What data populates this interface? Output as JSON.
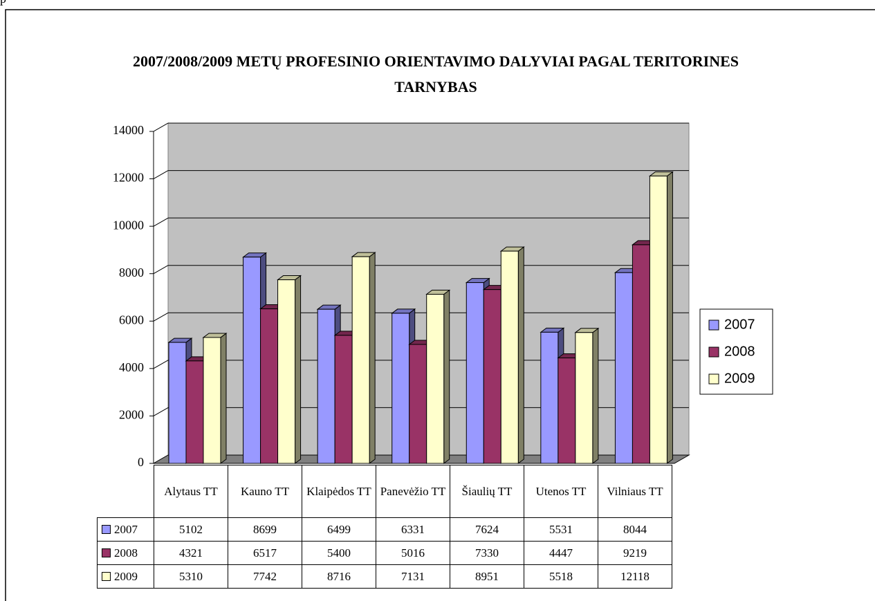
{
  "page_fragment": "p",
  "chart_data": {
    "type": "bar3d",
    "title": "2007/2008/2009 METŲ PROFESINIO ORIENTAVIMO DALYVIAI PAGAL TERITORINES TARNYBAS",
    "categories": [
      "Alytaus TT",
      "Kauno TT",
      "Klaipėdos TT",
      "Panevėžio TT",
      "Šiaulių TT",
      "Utenos TT",
      "Vilniaus TT"
    ],
    "series": [
      {
        "name": "2007",
        "color": "#9999ff",
        "values": [
          5102,
          8699,
          6499,
          6331,
          7624,
          5531,
          8044
        ]
      },
      {
        "name": "2008",
        "color": "#993366",
        "values": [
          4321,
          6517,
          5400,
          5016,
          7330,
          4447,
          9219
        ]
      },
      {
        "name": "2009",
        "color": "#ffffcc",
        "values": [
          5310,
          7742,
          8716,
          7131,
          8951,
          5518,
          12118
        ]
      }
    ],
    "ylim": [
      0,
      14000
    ],
    "yticks": [
      0,
      2000,
      4000,
      6000,
      8000,
      10000,
      12000,
      14000
    ],
    "grid": true,
    "legend": "right",
    "data_table": true
  }
}
